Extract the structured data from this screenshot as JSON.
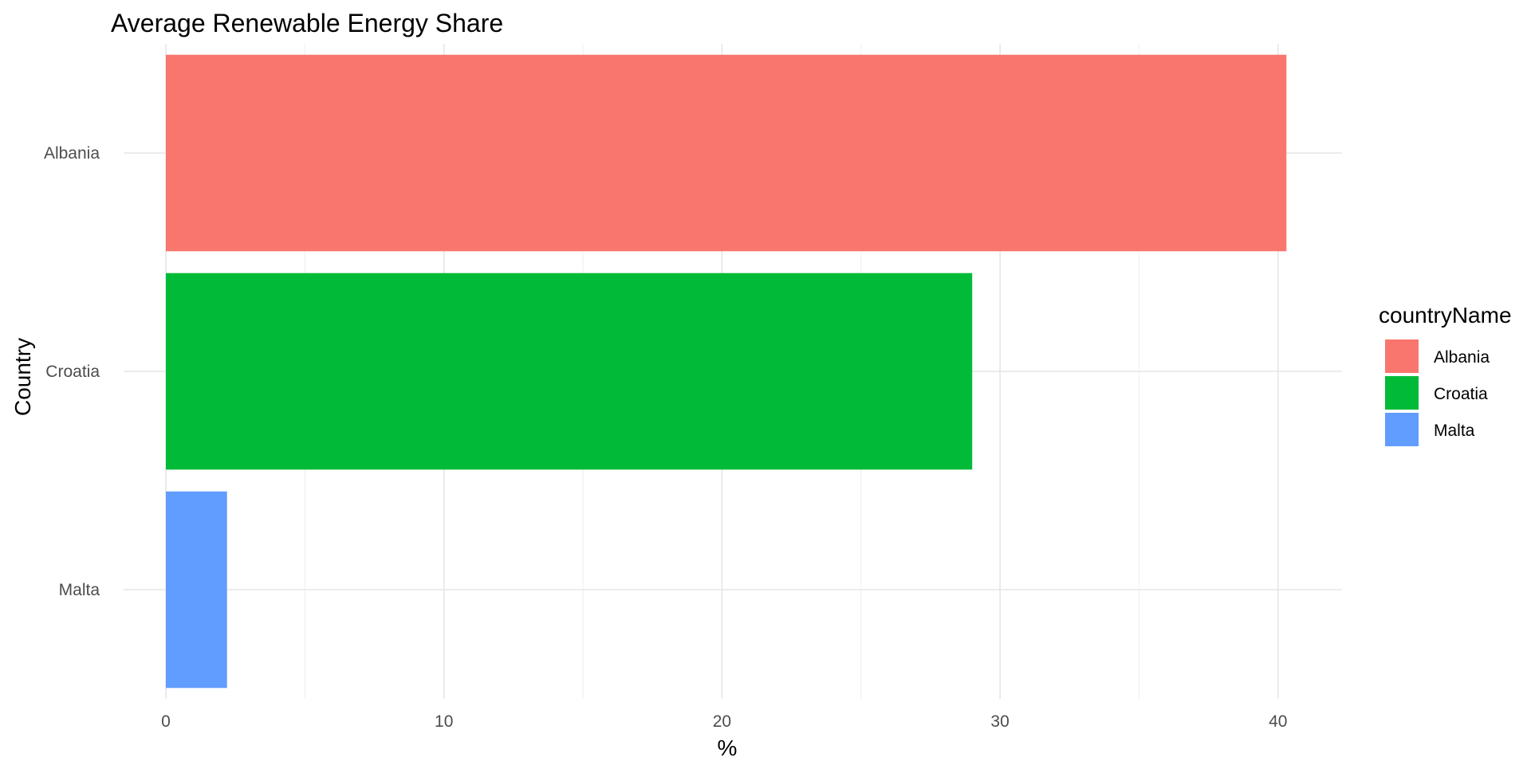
{
  "chart_data": {
    "type": "bar",
    "orientation": "horizontal",
    "title": "Average Renewable Energy Share",
    "xlabel": "%",
    "ylabel": "Country",
    "categories": [
      "Albania",
      "Croatia",
      "Malta"
    ],
    "values": [
      40.3,
      29.0,
      2.2
    ],
    "xlim": [
      0,
      42.3
    ],
    "x_ticks": [
      "0",
      "10",
      "20",
      "30",
      "40"
    ],
    "grid": true,
    "legend": {
      "title": "countryName",
      "position": "right",
      "entries": [
        "Albania",
        "Croatia",
        "Malta"
      ]
    },
    "colors": [
      "#F8766D",
      "#00BA38",
      "#619CFF"
    ]
  }
}
